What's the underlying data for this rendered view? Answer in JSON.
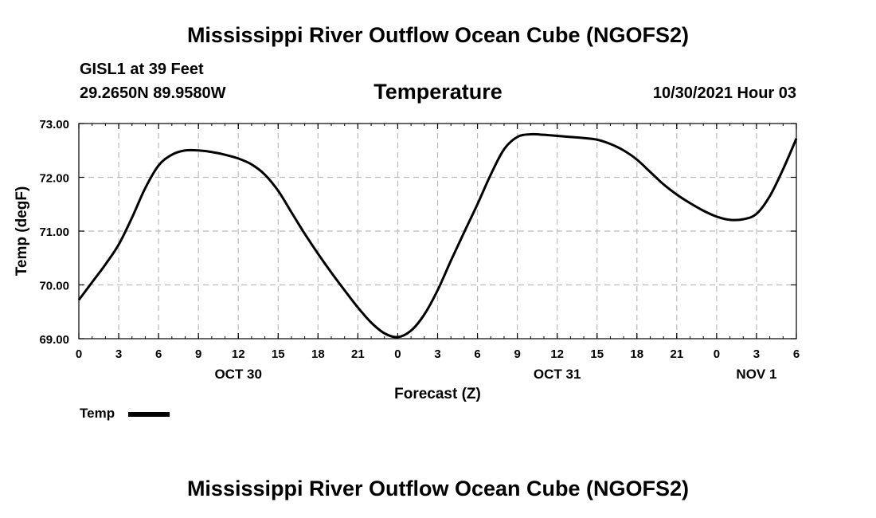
{
  "header": {
    "title": "Mississippi River Outflow Ocean Cube (NGOFS2)",
    "station": "GISL1 at 39 Feet",
    "coords": "29.2650N  89.9580W",
    "parameter": "Temperature",
    "datetime": "10/30/2021 Hour 03"
  },
  "footer": {
    "title": "Mississippi River Outflow Ocean Cube (NGOFS2)"
  },
  "legend": {
    "label": "Temp",
    "color": "#000000"
  },
  "chart_data": {
    "type": "line",
    "title": "Temperature",
    "xlabel": "Forecast (Z)",
    "ylabel": "Temp (degF)",
    "xlim": [
      0,
      54
    ],
    "ylim": [
      69,
      73
    ],
    "grid": true,
    "x_ticks": [
      {
        "x": 0,
        "label": "0"
      },
      {
        "x": 3,
        "label": "3"
      },
      {
        "x": 6,
        "label": "6"
      },
      {
        "x": 9,
        "label": "9"
      },
      {
        "x": 12,
        "label": "12"
      },
      {
        "x": 15,
        "label": "15"
      },
      {
        "x": 18,
        "label": "18"
      },
      {
        "x": 21,
        "label": "21"
      },
      {
        "x": 24,
        "label": "0"
      },
      {
        "x": 27,
        "label": "3"
      },
      {
        "x": 30,
        "label": "6"
      },
      {
        "x": 33,
        "label": "9"
      },
      {
        "x": 36,
        "label": "12"
      },
      {
        "x": 39,
        "label": "15"
      },
      {
        "x": 42,
        "label": "18"
      },
      {
        "x": 45,
        "label": "21"
      },
      {
        "x": 48,
        "label": "0"
      },
      {
        "x": 51,
        "label": "3"
      },
      {
        "x": 54,
        "label": "6"
      }
    ],
    "date_labels": [
      {
        "x": 12,
        "label": "OCT 30"
      },
      {
        "x": 36,
        "label": "OCT 31"
      },
      {
        "x": 51,
        "label": "NOV 1"
      }
    ],
    "y_ticks": [
      {
        "y": 69,
        "label": "69.00"
      },
      {
        "y": 70,
        "label": "70.00"
      },
      {
        "y": 71,
        "label": "71.00"
      },
      {
        "y": 72,
        "label": "72.00"
      },
      {
        "y": 73,
        "label": "73.00"
      }
    ],
    "series": [
      {
        "name": "Temp",
        "x": [
          0,
          1,
          2,
          3,
          4,
          5,
          6,
          7,
          8,
          9,
          10,
          11,
          12,
          13,
          14,
          15,
          16,
          17,
          18,
          19,
          20,
          21,
          22,
          23,
          24,
          25,
          26,
          27,
          28,
          29,
          30,
          31,
          32,
          33,
          34,
          35,
          36,
          37,
          38,
          39,
          40,
          41,
          42,
          43,
          44,
          45,
          46,
          47,
          48,
          49,
          50,
          51,
          52,
          53,
          54
        ],
        "values": [
          69.72,
          70.05,
          70.38,
          70.75,
          71.25,
          71.8,
          72.22,
          72.42,
          72.5,
          72.5,
          72.47,
          72.42,
          72.35,
          72.24,
          72.05,
          71.75,
          71.35,
          70.95,
          70.58,
          70.23,
          69.9,
          69.58,
          69.3,
          69.1,
          69.03,
          69.15,
          69.45,
          69.9,
          70.45,
          70.98,
          71.5,
          72.05,
          72.52,
          72.75,
          72.8,
          72.79,
          72.77,
          72.75,
          72.73,
          72.7,
          72.62,
          72.5,
          72.33,
          72.1,
          71.87,
          71.68,
          71.52,
          71.38,
          71.27,
          71.21,
          71.22,
          71.32,
          71.65,
          72.15,
          72.72
        ]
      }
    ]
  }
}
